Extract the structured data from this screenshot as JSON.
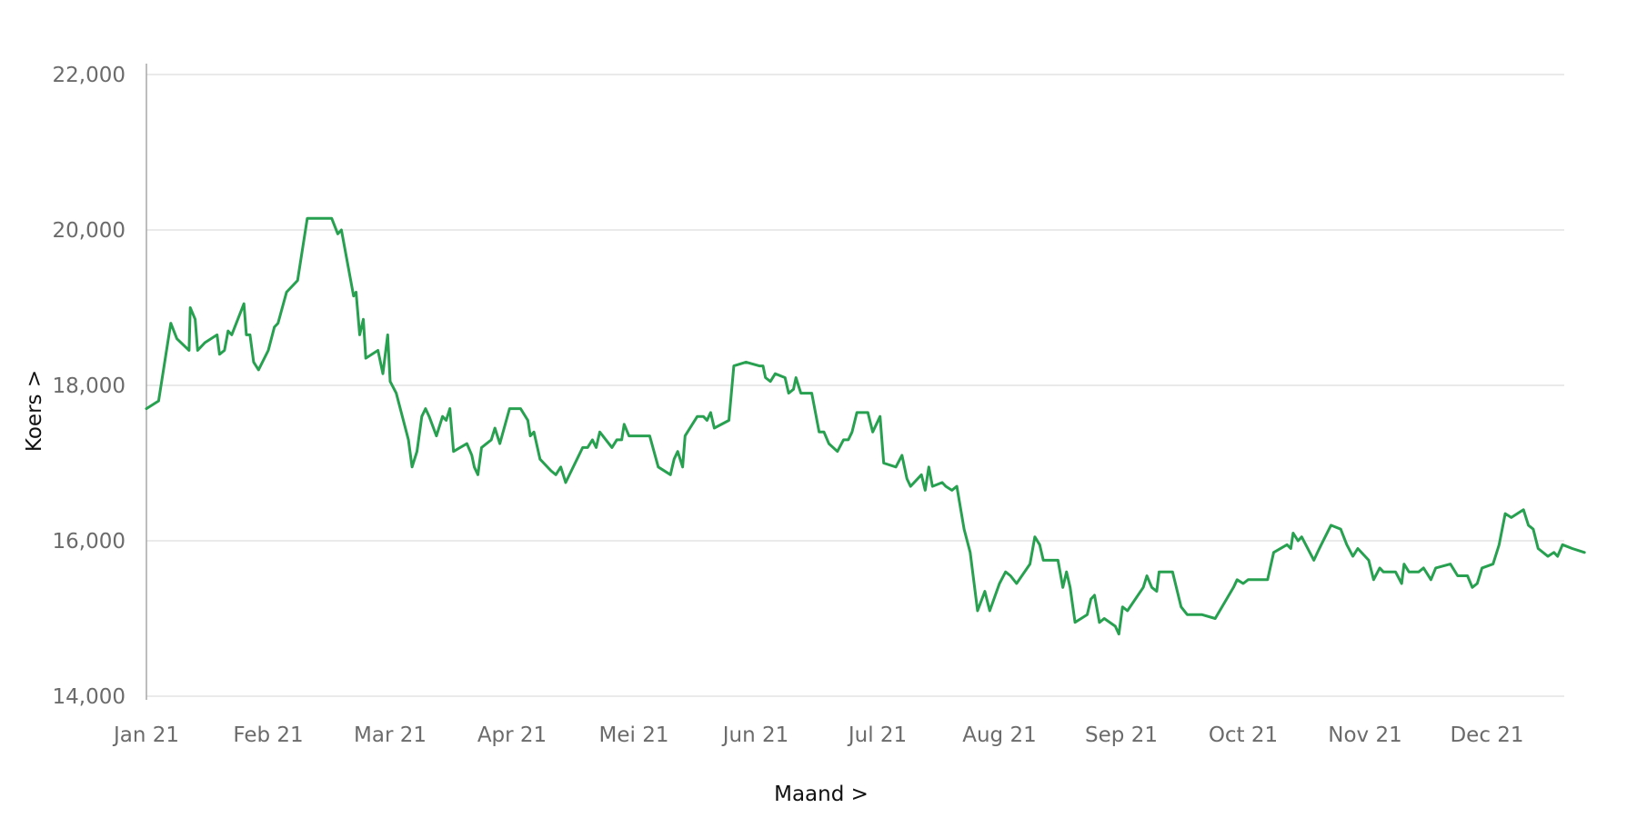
{
  "chart_data": {
    "type": "line",
    "title": "",
    "xlabel": "Maand >",
    "ylabel": "Koers >",
    "ylim": [
      14000,
      22000
    ],
    "xlim": [
      0,
      11.8
    ],
    "grid": true,
    "y_ticks": [
      {
        "value": 14000,
        "label": "14,000"
      },
      {
        "value": 16000,
        "label": "16,000"
      },
      {
        "value": 18000,
        "label": "18,000"
      },
      {
        "value": 20000,
        "label": "20,000"
      },
      {
        "value": 22000,
        "label": "22,000"
      }
    ],
    "x_ticks": [
      {
        "value": 0,
        "label": "Jan 21"
      },
      {
        "value": 1,
        "label": "Feb 21"
      },
      {
        "value": 2,
        "label": "Mar 21"
      },
      {
        "value": 3,
        "label": "Apr 21"
      },
      {
        "value": 4,
        "label": "Mei 21"
      },
      {
        "value": 5,
        "label": "Jun 21"
      },
      {
        "value": 6,
        "label": "Jul 21"
      },
      {
        "value": 7,
        "label": "Aug 21"
      },
      {
        "value": 8,
        "label": "Sep 21"
      },
      {
        "value": 9,
        "label": "Oct 21"
      },
      {
        "value": 10,
        "label": "Nov 21"
      },
      {
        "value": 11,
        "label": "Dec 21"
      }
    ],
    "series": [
      {
        "color": "#27a050",
        "points": [
          [
            0.0,
            17700
          ],
          [
            0.1,
            17800
          ],
          [
            0.2,
            18800
          ],
          [
            0.25,
            18600
          ],
          [
            0.35,
            18450
          ],
          [
            0.36,
            19000
          ],
          [
            0.4,
            18850
          ],
          [
            0.42,
            18450
          ],
          [
            0.48,
            18550
          ],
          [
            0.58,
            18650
          ],
          [
            0.6,
            18400
          ],
          [
            0.64,
            18450
          ],
          [
            0.67,
            18700
          ],
          [
            0.7,
            18650
          ],
          [
            0.8,
            19050
          ],
          [
            0.82,
            18650
          ],
          [
            0.85,
            18650
          ],
          [
            0.88,
            18300
          ],
          [
            0.92,
            18200
          ],
          [
            1.0,
            18450
          ],
          [
            1.05,
            18750
          ],
          [
            1.08,
            18800
          ],
          [
            1.15,
            19200
          ],
          [
            1.24,
            19350
          ],
          [
            1.32,
            20150
          ],
          [
            1.52,
            20150
          ],
          [
            1.57,
            19950
          ],
          [
            1.6,
            20000
          ],
          [
            1.7,
            19150
          ],
          [
            1.72,
            19200
          ],
          [
            1.75,
            18650
          ],
          [
            1.78,
            18850
          ],
          [
            1.8,
            18350
          ],
          [
            1.9,
            18450
          ],
          [
            1.94,
            18150
          ],
          [
            1.98,
            18650
          ],
          [
            2.0,
            18050
          ],
          [
            2.05,
            17900
          ],
          [
            2.15,
            17300
          ],
          [
            2.18,
            16950
          ],
          [
            2.22,
            17150
          ],
          [
            2.26,
            17600
          ],
          [
            2.29,
            17700
          ],
          [
            2.32,
            17600
          ],
          [
            2.38,
            17350
          ],
          [
            2.43,
            17600
          ],
          [
            2.46,
            17550
          ],
          [
            2.49,
            17700
          ],
          [
            2.52,
            17150
          ],
          [
            2.63,
            17250
          ],
          [
            2.67,
            17100
          ],
          [
            2.69,
            16950
          ],
          [
            2.72,
            16850
          ],
          [
            2.75,
            17200
          ],
          [
            2.83,
            17300
          ],
          [
            2.86,
            17450
          ],
          [
            2.9,
            17250
          ],
          [
            2.98,
            17700
          ],
          [
            3.07,
            17700
          ],
          [
            3.13,
            17550
          ],
          [
            3.15,
            17350
          ],
          [
            3.18,
            17400
          ],
          [
            3.23,
            17050
          ],
          [
            3.32,
            16900
          ],
          [
            3.36,
            16850
          ],
          [
            3.4,
            16950
          ],
          [
            3.44,
            16750
          ],
          [
            3.58,
            17200
          ],
          [
            3.62,
            17200
          ],
          [
            3.66,
            17300
          ],
          [
            3.69,
            17200
          ],
          [
            3.72,
            17400
          ],
          [
            3.82,
            17200
          ],
          [
            3.86,
            17300
          ],
          [
            3.9,
            17300
          ],
          [
            3.92,
            17500
          ],
          [
            3.96,
            17350
          ],
          [
            4.13,
            17350
          ],
          [
            4.2,
            16950
          ],
          [
            4.3,
            16850
          ],
          [
            4.33,
            17050
          ],
          [
            4.36,
            17150
          ],
          [
            4.4,
            16950
          ],
          [
            4.42,
            17350
          ],
          [
            4.52,
            17600
          ],
          [
            4.57,
            17600
          ],
          [
            4.6,
            17550
          ],
          [
            4.63,
            17650
          ],
          [
            4.66,
            17450
          ],
          [
            4.78,
            17550
          ],
          [
            4.82,
            18250
          ],
          [
            4.92,
            18300
          ],
          [
            5.03,
            18250
          ],
          [
            5.06,
            18250
          ],
          [
            5.08,
            18100
          ],
          [
            5.12,
            18050
          ],
          [
            5.16,
            18150
          ],
          [
            5.24,
            18100
          ],
          [
            5.27,
            17900
          ],
          [
            5.31,
            17950
          ],
          [
            5.33,
            18100
          ],
          [
            5.37,
            17900
          ],
          [
            5.46,
            17900
          ],
          [
            5.52,
            17400
          ],
          [
            5.56,
            17400
          ],
          [
            5.6,
            17250
          ],
          [
            5.67,
            17150
          ],
          [
            5.72,
            17300
          ],
          [
            5.76,
            17300
          ],
          [
            5.79,
            17400
          ],
          [
            5.83,
            17650
          ],
          [
            5.92,
            17650
          ],
          [
            5.96,
            17400
          ],
          [
            6.02,
            17600
          ],
          [
            6.05,
            17000
          ],
          [
            6.15,
            16950
          ],
          [
            6.2,
            17100
          ],
          [
            6.24,
            16800
          ],
          [
            6.27,
            16700
          ],
          [
            6.36,
            16850
          ],
          [
            6.39,
            16650
          ],
          [
            6.42,
            16950
          ],
          [
            6.45,
            16700
          ],
          [
            6.53,
            16750
          ],
          [
            6.56,
            16700
          ],
          [
            6.61,
            16650
          ],
          [
            6.65,
            16700
          ],
          [
            6.71,
            16150
          ],
          [
            6.76,
            15850
          ],
          [
            6.82,
            15100
          ],
          [
            6.88,
            15350
          ],
          [
            6.92,
            15100
          ],
          [
            7.0,
            15450
          ],
          [
            7.05,
            15600
          ],
          [
            7.09,
            15550
          ],
          [
            7.14,
            15450
          ],
          [
            7.25,
            15700
          ],
          [
            7.29,
            16050
          ],
          [
            7.33,
            15950
          ],
          [
            7.36,
            15750
          ],
          [
            7.48,
            15750
          ],
          [
            7.52,
            15400
          ],
          [
            7.55,
            15600
          ],
          [
            7.58,
            15400
          ],
          [
            7.62,
            14950
          ],
          [
            7.72,
            15050
          ],
          [
            7.75,
            15250
          ],
          [
            7.78,
            15300
          ],
          [
            7.82,
            14950
          ],
          [
            7.86,
            15000
          ],
          [
            7.95,
            14900
          ],
          [
            7.98,
            14800
          ],
          [
            8.01,
            15150
          ],
          [
            8.05,
            15100
          ],
          [
            8.18,
            15400
          ],
          [
            8.21,
            15550
          ],
          [
            8.25,
            15400
          ],
          [
            8.29,
            15350
          ],
          [
            8.31,
            15600
          ],
          [
            8.42,
            15600
          ],
          [
            8.49,
            15150
          ],
          [
            8.54,
            15050
          ],
          [
            8.66,
            15050
          ],
          [
            8.77,
            15000
          ],
          [
            8.92,
            15400
          ],
          [
            8.95,
            15500
          ],
          [
            9.0,
            15450
          ],
          [
            9.04,
            15500
          ],
          [
            9.2,
            15500
          ],
          [
            9.25,
            15850
          ],
          [
            9.36,
            15950
          ],
          [
            9.39,
            15900
          ],
          [
            9.41,
            16100
          ],
          [
            9.45,
            16000
          ],
          [
            9.48,
            16050
          ],
          [
            9.58,
            15750
          ],
          [
            9.61,
            15850
          ],
          [
            9.64,
            15950
          ],
          [
            9.72,
            16200
          ],
          [
            9.8,
            16150
          ],
          [
            9.85,
            15950
          ],
          [
            9.9,
            15800
          ],
          [
            9.94,
            15900
          ],
          [
            10.03,
            15750
          ],
          [
            10.07,
            15500
          ],
          [
            10.12,
            15650
          ],
          [
            10.15,
            15600
          ],
          [
            10.25,
            15600
          ],
          [
            10.3,
            15450
          ],
          [
            10.32,
            15700
          ],
          [
            10.36,
            15600
          ],
          [
            10.44,
            15600
          ],
          [
            10.48,
            15650
          ],
          [
            10.5,
            15600
          ],
          [
            10.54,
            15500
          ],
          [
            10.58,
            15650
          ],
          [
            10.7,
            15700
          ],
          [
            10.72,
            15650
          ],
          [
            10.76,
            15550
          ],
          [
            10.84,
            15550
          ],
          [
            10.88,
            15400
          ],
          [
            10.92,
            15450
          ],
          [
            10.96,
            15650
          ],
          [
            11.05,
            15700
          ],
          [
            11.1,
            15950
          ],
          [
            11.15,
            16350
          ],
          [
            11.2,
            16300
          ],
          [
            11.3,
            16400
          ],
          [
            11.34,
            16200
          ],
          [
            11.38,
            16150
          ],
          [
            11.42,
            15900
          ],
          [
            11.5,
            15800
          ],
          [
            11.55,
            15850
          ],
          [
            11.58,
            15800
          ],
          [
            11.62,
            15950
          ],
          [
            11.7,
            15900
          ],
          [
            11.8,
            15850
          ]
        ]
      }
    ]
  }
}
